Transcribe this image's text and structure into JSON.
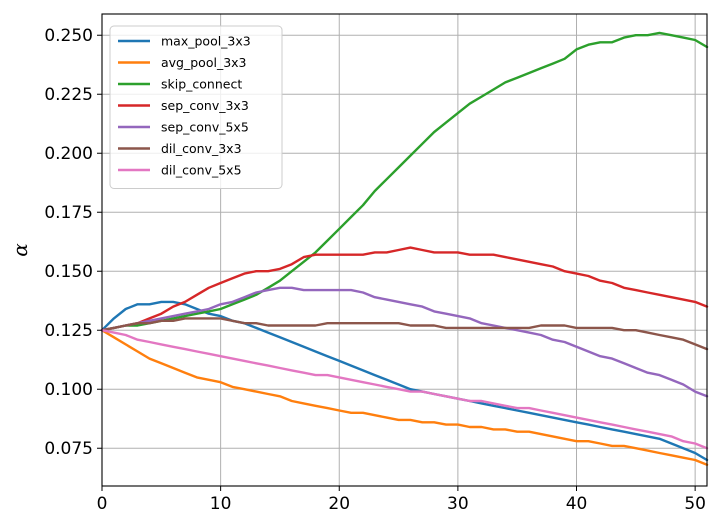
{
  "chart_data": {
    "type": "line",
    "title": "",
    "xlabel": "",
    "ylabel": "α",
    "xlim": [
      0,
      51
    ],
    "ylim": [
      0.059,
      0.259
    ],
    "grid": true,
    "legend_position": "top-left",
    "x_ticks": [
      "0",
      "10",
      "20",
      "30",
      "40",
      "50"
    ],
    "y_ticks": [
      "0.075",
      "0.100",
      "0.125",
      "0.150",
      "0.175",
      "0.200",
      "0.225",
      "0.250"
    ],
    "x": [
      0,
      1,
      2,
      3,
      4,
      5,
      6,
      7,
      8,
      9,
      10,
      11,
      12,
      13,
      14,
      15,
      16,
      17,
      18,
      19,
      20,
      21,
      22,
      23,
      24,
      25,
      26,
      27,
      28,
      29,
      30,
      31,
      32,
      33,
      34,
      35,
      36,
      37,
      38,
      39,
      40,
      41,
      42,
      43,
      44,
      45,
      46,
      47,
      48,
      49,
      50,
      51
    ],
    "series": [
      {
        "name": "max_pool_3x3",
        "color": "#1f77b4",
        "values": [
          0.125,
          0.13,
          0.134,
          0.136,
          0.136,
          0.137,
          0.137,
          0.136,
          0.134,
          0.132,
          0.131,
          0.129,
          0.128,
          0.126,
          0.124,
          0.122,
          0.12,
          0.118,
          0.116,
          0.114,
          0.112,
          0.11,
          0.108,
          0.106,
          0.104,
          0.102,
          0.1,
          0.099,
          0.098,
          0.097,
          0.096,
          0.095,
          0.094,
          0.093,
          0.092,
          0.091,
          0.09,
          0.089,
          0.088,
          0.087,
          0.086,
          0.085,
          0.084,
          0.083,
          0.082,
          0.081,
          0.08,
          0.079,
          0.077,
          0.075,
          0.073,
          0.07
        ]
      },
      {
        "name": "avg_pool_3x3",
        "color": "#ff7f0e",
        "values": [
          0.125,
          0.122,
          0.119,
          0.116,
          0.113,
          0.111,
          0.109,
          0.107,
          0.105,
          0.104,
          0.103,
          0.101,
          0.1,
          0.099,
          0.098,
          0.097,
          0.095,
          0.094,
          0.093,
          0.092,
          0.091,
          0.09,
          0.09,
          0.089,
          0.088,
          0.087,
          0.087,
          0.086,
          0.086,
          0.085,
          0.085,
          0.084,
          0.084,
          0.083,
          0.083,
          0.082,
          0.082,
          0.081,
          0.08,
          0.079,
          0.078,
          0.078,
          0.077,
          0.076,
          0.076,
          0.075,
          0.074,
          0.073,
          0.072,
          0.071,
          0.07,
          0.068
        ]
      },
      {
        "name": "skip_connect",
        "color": "#2ca02c",
        "values": [
          0.125,
          0.126,
          0.127,
          0.127,
          0.128,
          0.129,
          0.13,
          0.131,
          0.132,
          0.133,
          0.134,
          0.136,
          0.138,
          0.14,
          0.143,
          0.146,
          0.15,
          0.154,
          0.158,
          0.163,
          0.168,
          0.173,
          0.178,
          0.184,
          0.189,
          0.194,
          0.199,
          0.204,
          0.209,
          0.213,
          0.217,
          0.221,
          0.224,
          0.227,
          0.23,
          0.232,
          0.234,
          0.236,
          0.238,
          0.24,
          0.244,
          0.246,
          0.247,
          0.247,
          0.249,
          0.25,
          0.25,
          0.251,
          0.25,
          0.249,
          0.248,
          0.245
        ]
      },
      {
        "name": "sep_conv_3x3",
        "color": "#d62728",
        "values": [
          0.125,
          0.126,
          0.127,
          0.128,
          0.13,
          0.132,
          0.135,
          0.137,
          0.14,
          0.143,
          0.145,
          0.147,
          0.149,
          0.15,
          0.15,
          0.151,
          0.153,
          0.156,
          0.157,
          0.157,
          0.157,
          0.157,
          0.157,
          0.158,
          0.158,
          0.159,
          0.16,
          0.159,
          0.158,
          0.158,
          0.158,
          0.157,
          0.157,
          0.157,
          0.156,
          0.155,
          0.154,
          0.153,
          0.152,
          0.15,
          0.149,
          0.148,
          0.146,
          0.145,
          0.143,
          0.142,
          0.141,
          0.14,
          0.139,
          0.138,
          0.137,
          0.135
        ]
      },
      {
        "name": "sep_conv_5x5",
        "color": "#9467bd",
        "values": [
          0.125,
          0.126,
          0.127,
          0.128,
          0.129,
          0.13,
          0.131,
          0.132,
          0.133,
          0.134,
          0.136,
          0.137,
          0.139,
          0.141,
          0.142,
          0.143,
          0.143,
          0.142,
          0.142,
          0.142,
          0.142,
          0.142,
          0.141,
          0.139,
          0.138,
          0.137,
          0.136,
          0.135,
          0.133,
          0.132,
          0.131,
          0.13,
          0.128,
          0.127,
          0.126,
          0.125,
          0.124,
          0.123,
          0.121,
          0.12,
          0.118,
          0.116,
          0.114,
          0.113,
          0.111,
          0.109,
          0.107,
          0.106,
          0.104,
          0.102,
          0.099,
          0.097
        ]
      },
      {
        "name": "dil_conv_3x3",
        "color": "#8c564b",
        "values": [
          0.125,
          0.126,
          0.127,
          0.128,
          0.128,
          0.129,
          0.129,
          0.13,
          0.13,
          0.13,
          0.13,
          0.129,
          0.128,
          0.128,
          0.127,
          0.127,
          0.127,
          0.127,
          0.127,
          0.128,
          0.128,
          0.128,
          0.128,
          0.128,
          0.128,
          0.128,
          0.127,
          0.127,
          0.127,
          0.126,
          0.126,
          0.126,
          0.126,
          0.126,
          0.126,
          0.126,
          0.126,
          0.127,
          0.127,
          0.127,
          0.126,
          0.126,
          0.126,
          0.126,
          0.125,
          0.125,
          0.124,
          0.123,
          0.122,
          0.121,
          0.119,
          0.117
        ]
      },
      {
        "name": "dil_conv_5x5",
        "color": "#e377c2",
        "values": [
          0.125,
          0.124,
          0.123,
          0.121,
          0.12,
          0.119,
          0.118,
          0.117,
          0.116,
          0.115,
          0.114,
          0.113,
          0.112,
          0.111,
          0.11,
          0.109,
          0.108,
          0.107,
          0.106,
          0.106,
          0.105,
          0.104,
          0.103,
          0.102,
          0.101,
          0.1,
          0.099,
          0.099,
          0.098,
          0.097,
          0.096,
          0.095,
          0.095,
          0.094,
          0.093,
          0.092,
          0.092,
          0.091,
          0.09,
          0.089,
          0.088,
          0.087,
          0.086,
          0.085,
          0.084,
          0.083,
          0.082,
          0.081,
          0.08,
          0.078,
          0.077,
          0.075
        ]
      }
    ]
  }
}
